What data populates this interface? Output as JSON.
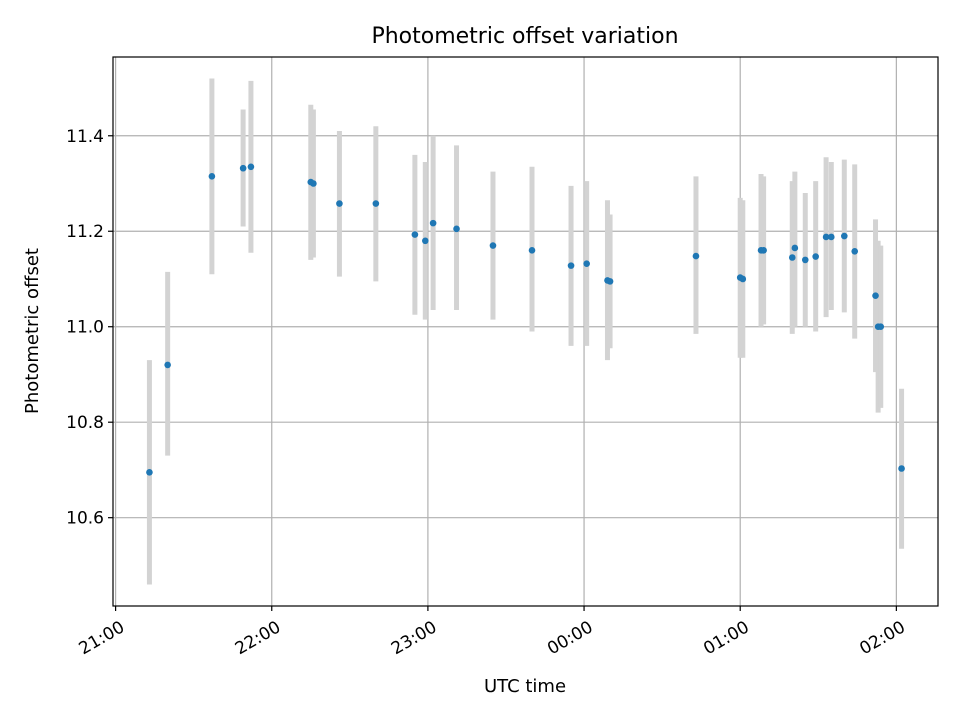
{
  "chart_data": {
    "type": "scatter",
    "title": "Photometric offset variation",
    "xlabel": "UTC time",
    "ylabel": "Photometric offset",
    "x_axis": "time",
    "xlim": [
      "2021-01-01T20:59:00",
      "2021-01-02T02:16:00"
    ],
    "ylim": [
      10.415,
      11.565
    ],
    "x_ticks": [
      {
        "t": "2021-01-01T21:00:00",
        "label": "21:00"
      },
      {
        "t": "2021-01-01T22:00:00",
        "label": "22:00"
      },
      {
        "t": "2021-01-01T23:00:00",
        "label": "23:00"
      },
      {
        "t": "2021-01-02T00:00:00",
        "label": "00:00"
      },
      {
        "t": "2021-01-02T01:00:00",
        "label": "01:00"
      },
      {
        "t": "2021-01-02T02:00:00",
        "label": "02:00"
      }
    ],
    "y_ticks": [
      10.6,
      10.8,
      11.0,
      11.2,
      11.4
    ],
    "y_tick_labels": [
      "10.6",
      "10.8",
      "11.0",
      "11.2",
      "11.4"
    ],
    "grid": true,
    "legend": "none",
    "colors": {
      "point": "#1f77b4",
      "error_bar": "#d3d3d3",
      "grid": "#b0b0b0"
    },
    "series": [
      {
        "points": [
          {
            "t": "2021-01-01T21:13:00",
            "y": 10.695,
            "lo": 10.46,
            "hi": 10.93
          },
          {
            "t": "2021-01-01T21:20:00",
            "y": 10.92,
            "lo": 10.73,
            "hi": 11.115
          },
          {
            "t": "2021-01-01T21:37:00",
            "y": 11.315,
            "lo": 11.11,
            "hi": 11.52
          },
          {
            "t": "2021-01-01T21:49:00",
            "y": 11.332,
            "lo": 11.21,
            "hi": 11.455
          },
          {
            "t": "2021-01-01T21:52:00",
            "y": 11.335,
            "lo": 11.155,
            "hi": 11.515
          },
          {
            "t": "2021-01-01T22:15:00",
            "y": 11.303,
            "lo": 11.14,
            "hi": 11.465
          },
          {
            "t": "2021-01-01T22:16:00",
            "y": 11.3,
            "lo": 11.145,
            "hi": 11.455
          },
          {
            "t": "2021-01-01T22:26:00",
            "y": 11.258,
            "lo": 11.105,
            "hi": 11.41
          },
          {
            "t": "2021-01-01T22:40:00",
            "y": 11.258,
            "lo": 11.095,
            "hi": 11.42
          },
          {
            "t": "2021-01-01T22:55:00",
            "y": 11.193,
            "lo": 11.025,
            "hi": 11.36
          },
          {
            "t": "2021-01-01T22:59:00",
            "y": 11.18,
            "lo": 11.015,
            "hi": 11.345
          },
          {
            "t": "2021-01-01T23:02:00",
            "y": 11.217,
            "lo": 11.035,
            "hi": 11.4
          },
          {
            "t": "2021-01-01T23:11:00",
            "y": 11.205,
            "lo": 11.035,
            "hi": 11.38
          },
          {
            "t": "2021-01-01T23:25:00",
            "y": 11.17,
            "lo": 11.015,
            "hi": 11.325
          },
          {
            "t": "2021-01-01T23:40:00",
            "y": 11.16,
            "lo": 10.99,
            "hi": 11.335
          },
          {
            "t": "2021-01-01T23:55:00",
            "y": 11.128,
            "lo": 10.96,
            "hi": 11.295
          },
          {
            "t": "2021-01-02T00:01:00",
            "y": 11.132,
            "lo": 10.96,
            "hi": 11.305
          },
          {
            "t": "2021-01-02T00:09:00",
            "y": 11.097,
            "lo": 10.93,
            "hi": 11.265
          },
          {
            "t": "2021-01-02T00:10:00",
            "y": 11.095,
            "lo": 10.955,
            "hi": 11.235
          },
          {
            "t": "2021-01-02T00:43:00",
            "y": 11.148,
            "lo": 10.985,
            "hi": 11.315
          },
          {
            "t": "2021-01-02T01:00:00",
            "y": 11.103,
            "lo": 10.935,
            "hi": 11.27
          },
          {
            "t": "2021-01-02T01:01:00",
            "y": 11.1,
            "lo": 10.935,
            "hi": 11.265
          },
          {
            "t": "2021-01-02T01:08:00",
            "y": 11.16,
            "lo": 11.0,
            "hi": 11.32
          },
          {
            "t": "2021-01-02T01:09:00",
            "y": 11.16,
            "lo": 11.005,
            "hi": 11.315
          },
          {
            "t": "2021-01-02T01:20:00",
            "y": 11.145,
            "lo": 10.985,
            "hi": 11.305
          },
          {
            "t": "2021-01-02T01:21:00",
            "y": 11.165,
            "lo": 11.0,
            "hi": 11.325
          },
          {
            "t": "2021-01-02T01:25:00",
            "y": 11.14,
            "lo": 11.0,
            "hi": 11.28
          },
          {
            "t": "2021-01-02T01:29:00",
            "y": 11.147,
            "lo": 10.99,
            "hi": 11.305
          },
          {
            "t": "2021-01-02T01:33:00",
            "y": 11.188,
            "lo": 11.02,
            "hi": 11.355
          },
          {
            "t": "2021-01-02T01:35:00",
            "y": 11.188,
            "lo": 11.035,
            "hi": 11.345
          },
          {
            "t": "2021-01-02T01:40:00",
            "y": 11.19,
            "lo": 11.03,
            "hi": 11.35
          },
          {
            "t": "2021-01-02T01:44:00",
            "y": 11.158,
            "lo": 10.975,
            "hi": 11.34
          },
          {
            "t": "2021-01-02T01:52:00",
            "y": 11.065,
            "lo": 10.905,
            "hi": 11.225
          },
          {
            "t": "2021-01-02T01:53:00",
            "y": 11.0,
            "lo": 10.82,
            "hi": 11.18
          },
          {
            "t": "2021-01-02T01:54:00",
            "y": 11.0,
            "lo": 10.83,
            "hi": 11.17
          },
          {
            "t": "2021-01-02T02:02:00",
            "y": 10.703,
            "lo": 10.535,
            "hi": 10.87
          }
        ]
      }
    ]
  }
}
